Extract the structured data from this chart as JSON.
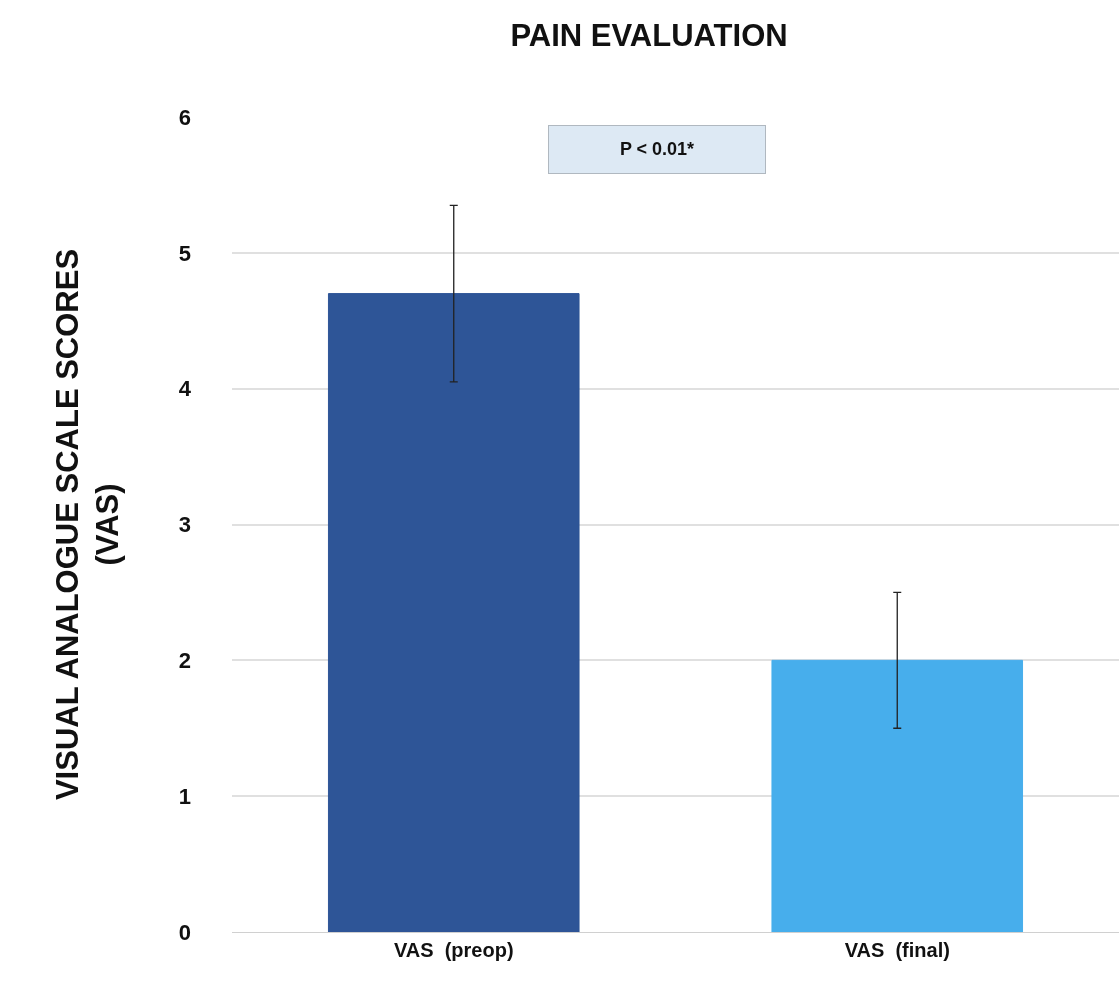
{
  "chart_data": {
    "type": "bar",
    "title": "PAIN EVALUATION",
    "ylabel": "VISUAL ANALOGUE SCALE SCORES (VAS)",
    "categories": [
      "VAS  (preop)",
      "VAS  (final)"
    ],
    "values": [
      4.7,
      2.0
    ],
    "colors": [
      "#2e5597",
      "#47aeec"
    ],
    "errors": [
      [
        4.05,
        5.35
      ],
      [
        1.5,
        2.5
      ]
    ],
    "ylim": [
      0,
      6
    ],
    "yticks": [
      0,
      1,
      2,
      3,
      4,
      5,
      6
    ],
    "grid": "y",
    "annotations": [
      "P < 0.01*"
    ]
  }
}
